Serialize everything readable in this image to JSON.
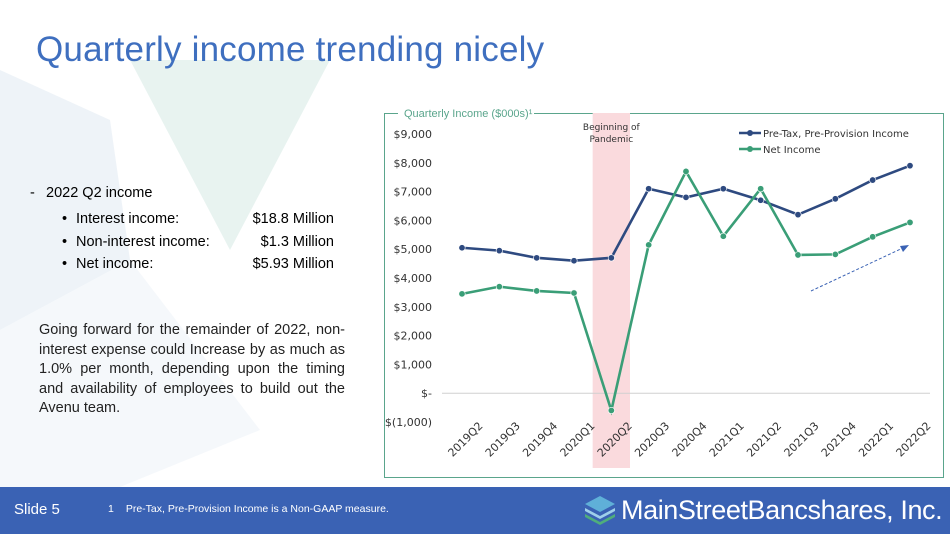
{
  "slide": {
    "title": "Quarterly income trending nicely",
    "slide_number": "Slide 5",
    "footnote_number": "1",
    "footnote": "Pre-Tax, Pre-Provision Income is a Non-GAAP measure.",
    "logo_text": "MainStreetBancshares, Inc."
  },
  "bullets": {
    "head": "2022 Q2 income",
    "items": [
      {
        "label": "Interest income:",
        "value": "$18.8 Million"
      },
      {
        "label": "Non-interest income:",
        "value": "$1.3 Million"
      },
      {
        "label": "Net income:",
        "value": "$5.93 Million"
      }
    ]
  },
  "paragraph": "Going forward for the remainder of 2022, non-interest expense could Increase by as much as 1.0% per month, depending upon the timing and availability of employees to build out the Avenu team.",
  "colors": {
    "title": "#3f6fbf",
    "footer": "#3a62b4",
    "pretax_series": "#2e4a80",
    "net_series": "#3a9e77",
    "pandemic_band": "#fadadd"
  },
  "chart_data": {
    "type": "line",
    "title": "Quarterly Income ($000s)¹",
    "categories": [
      "2019Q2",
      "2019Q3",
      "2019Q4",
      "2020Q1",
      "2020Q2",
      "2020Q3",
      "2020Q4",
      "2021Q1",
      "2021Q2",
      "2021Q3",
      "2021Q4",
      "2022Q1",
      "2022Q2"
    ],
    "series": [
      {
        "name": "Pre-Tax, Pre-Provision Income",
        "values": [
          5050,
          4950,
          4700,
          4600,
          4700,
          7100,
          6800,
          7100,
          6700,
          6200,
          6750,
          7400,
          7900
        ]
      },
      {
        "name": "Net Income",
        "values": [
          3450,
          3700,
          3550,
          3480,
          -600,
          5150,
          7700,
          5450,
          7100,
          4800,
          4820,
          5430,
          5930
        ]
      }
    ],
    "ylim": [
      -1000,
      9000
    ],
    "yticks": [
      "$(1,000)",
      "$-",
      "$1,000",
      "$2,000",
      "$3,000",
      "$4,000",
      "$5,000",
      "$6,000",
      "$7,000",
      "$8,000",
      "$9,000"
    ],
    "annotation": "Beginning of Pandemic",
    "shaded_category": "2020Q2",
    "legend_position": "top-right",
    "grid": false
  }
}
